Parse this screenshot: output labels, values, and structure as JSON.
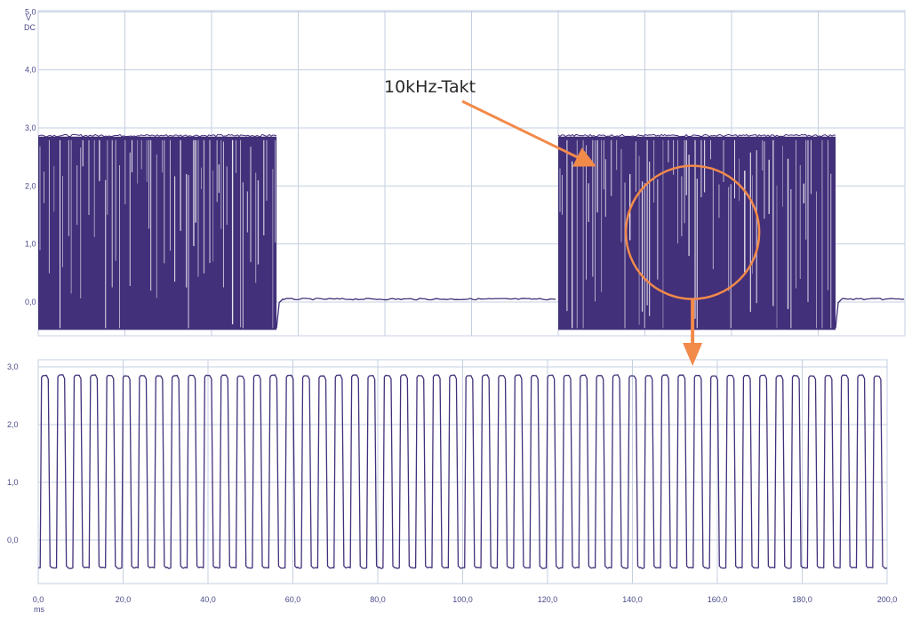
{
  "chart_data": [
    {
      "type": "line",
      "y_unit": [
        "V",
        "DC"
      ],
      "ylim": [
        -0.5,
        5.0
      ],
      "y_ticks": [
        "5,0",
        "4,0",
        "3,0",
        "2,0",
        "1,0",
        "0,0"
      ],
      "xlim": [
        0,
        200
      ],
      "grid": true,
      "series": [
        {
          "segments": [
            {
              "x": [
                0,
                55
              ],
              "state": "bursts",
              "high": 2.85,
              "low": -0.48
            },
            {
              "x": [
                55,
                120
              ],
              "state": "idle",
              "value": 0.05
            },
            {
              "x": [
                120,
                184
              ],
              "state": "bursts",
              "high": 2.85,
              "low": -0.48
            },
            {
              "x": [
                184,
                200
              ],
              "state": "idle",
              "value": 0.05
            }
          ]
        }
      ],
      "annotations": [
        {
          "text": "10kHz-Takt",
          "points_to": {
            "x": 124,
            "y": 2.3
          }
        },
        {
          "shape": "circle",
          "center": {
            "x": 151,
            "y": 1.2
          },
          "note": "zoom region"
        }
      ],
      "colors": {
        "trace": "#42307a",
        "annotation": "#f28a4a",
        "grid": "#c5cfe0"
      }
    },
    {
      "type": "line",
      "ylim": [
        -0.5,
        3.0
      ],
      "y_ticks": [
        "3,0",
        "2,0",
        "1,0",
        "0,0"
      ],
      "xlim": [
        0,
        200
      ],
      "x_ticks": [
        "0,0",
        "20,0",
        "40,0",
        "60,0",
        "80,0",
        "100,0",
        "120,0",
        "140,0",
        "160,0",
        "180,0",
        "200,0"
      ],
      "x_unit": "ms",
      "grid": true,
      "series": [
        {
          "pulses": 52,
          "high": 2.85,
          "low": -0.48,
          "duty": 0.55
        }
      ],
      "colors": {
        "trace": "#42307a",
        "grid": "#c5cfe0"
      }
    }
  ]
}
